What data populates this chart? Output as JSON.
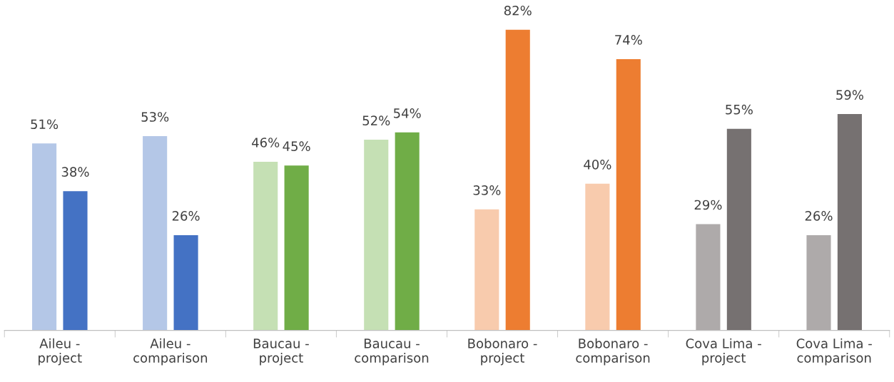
{
  "chart_data": {
    "type": "bar",
    "categories": [
      "Aileu -\nproject",
      "Aileu -\ncomparison",
      "Baucau -\nproject",
      "Baucau -\ncomparison",
      "Bobonaro -\nproject",
      "Bobonaro -\ncomparison",
      "Cova Lima -\nproject",
      "Cova Lima -\ncomparison"
    ],
    "series": [
      {
        "colors": [
          "#b4c7e7",
          "#b4c7e7",
          "#c5e0b4",
          "#c5e0b4",
          "#f8cbad",
          "#f8cbad",
          "#aeaaaa",
          "#aeaaaa"
        ],
        "values": [
          51,
          53,
          46,
          52,
          33,
          40,
          29,
          26
        ],
        "value_labels": [
          "51%",
          "53%",
          "46%",
          "52%",
          "33%",
          "40%",
          "29%",
          "26%"
        ]
      },
      {
        "colors": [
          "#4472c4",
          "#4472c4",
          "#70ad47",
          "#70ad47",
          "#ed7d31",
          "#ed7d31",
          "#767171",
          "#767171"
        ],
        "values": [
          38,
          26,
          45,
          54,
          82,
          74,
          55,
          59
        ],
        "value_labels": [
          "38%",
          "26%",
          "45%",
          "54%",
          "82%",
          "74%",
          "55%",
          "59%"
        ]
      }
    ],
    "grid": false,
    "tick_labels": "x"
  }
}
